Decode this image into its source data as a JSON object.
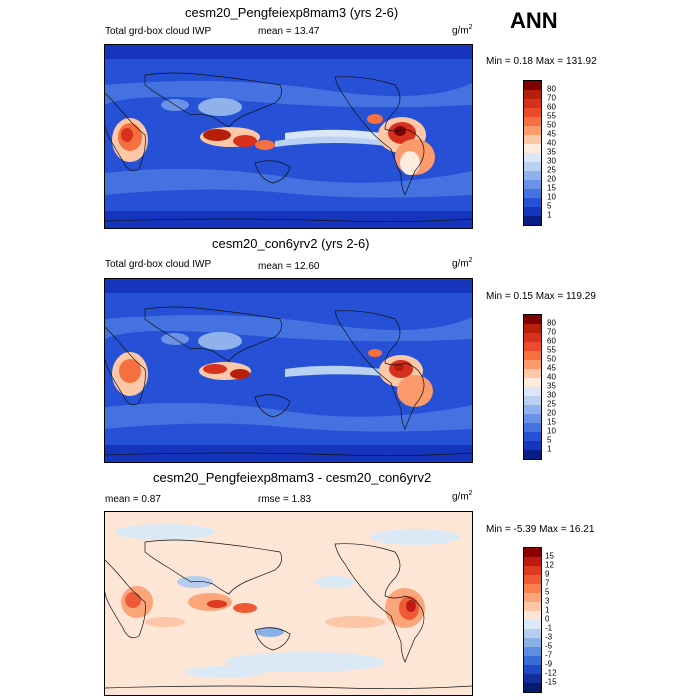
{
  "season": "ANN",
  "panels": [
    {
      "title": "cesm20_Pengfeiexp8mam3 (yrs 2-6)",
      "left_label": "Total grd-box cloud IWP",
      "mean": "mean =  13.47",
      "units": "g/m",
      "units_sup": "2",
      "minmax": "Min =  0.18 Max = 131.92",
      "levels": [
        "80",
        "70",
        "60",
        "55",
        "50",
        "45",
        "40",
        "35",
        "30",
        "25",
        "20",
        "15",
        "10",
        "5",
        "1"
      ],
      "colors": [
        "#7f0000",
        "#b81f0a",
        "#d7301f",
        "#ec4a2c",
        "#f6703f",
        "#fb9a6a",
        "#fdc8a8",
        "#fdebdd",
        "#dbe7f7",
        "#b9d2f2",
        "#8fb2ec",
        "#6a92e6",
        "#4472e0",
        "#2650d6",
        "#1535bd",
        "#081d85"
      ]
    },
    {
      "title": "cesm20_con6yrv2 (yrs 2-6)",
      "left_label": "Total grd-box cloud IWP",
      "mean": "mean =  12.60",
      "units": "g/m",
      "units_sup": "2",
      "minmax": "Min =  0.15 Max = 119.29",
      "levels": [
        "80",
        "70",
        "60",
        "55",
        "50",
        "45",
        "40",
        "35",
        "30",
        "25",
        "20",
        "15",
        "10",
        "5",
        "1"
      ],
      "colors": [
        "#7f0000",
        "#b81f0a",
        "#d7301f",
        "#ec4a2c",
        "#f6703f",
        "#fb9a6a",
        "#fdc8a8",
        "#fdebdd",
        "#dbe7f7",
        "#b9d2f2",
        "#8fb2ec",
        "#6a92e6",
        "#4472e0",
        "#2650d6",
        "#1535bd",
        "#081d85"
      ]
    },
    {
      "title": "cesm20_Pengfeiexp8mam3 - cesm20_con6yrv2",
      "left_label": "mean =   0.87",
      "mean": "rmse =   1.83",
      "units": "g/m",
      "units_sup": "2",
      "minmax": "Min =  -5.39 Max =  16.21",
      "levels": [
        "15",
        "12",
        "9",
        "7",
        "5",
        "3",
        "1",
        "0",
        "-1",
        "-3",
        "-5",
        "-7",
        "-9",
        "-12",
        "-15"
      ],
      "colors": [
        "#8b0000",
        "#c01a10",
        "#dd3a20",
        "#ef5a36",
        "#f7804f",
        "#fba57a",
        "#fdc6a6",
        "#fde6d6",
        "#dbe8f6",
        "#b7cdef",
        "#8ab0e8",
        "#5f8ee0",
        "#3a6bd6",
        "#1f48c4",
        "#112e9c",
        "#061a6e"
      ]
    }
  ]
}
